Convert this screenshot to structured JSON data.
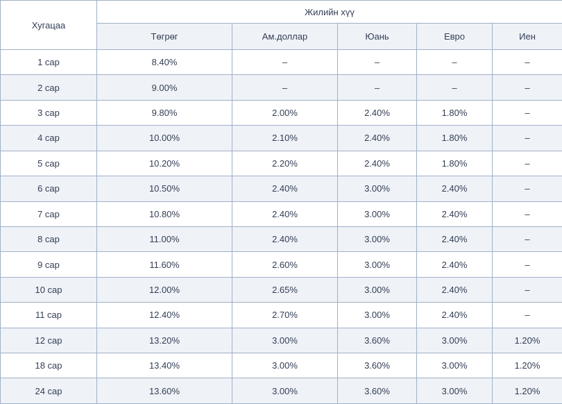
{
  "chart_data": {
    "type": "table",
    "title": "",
    "row_header": "Хугацаа",
    "column_group_header": "Жилийн хүү",
    "columns": [
      "Төгрөг",
      "Ам.доллар",
      "Юань",
      "Евро",
      "Иен"
    ],
    "empty_value": "–",
    "rows": [
      {
        "period": "1 сар",
        "values": [
          "8.40%",
          "–",
          "–",
          "–",
          "–"
        ]
      },
      {
        "period": "2 сар",
        "values": [
          "9.00%",
          "–",
          "–",
          "–",
          "–"
        ]
      },
      {
        "period": "3 сар",
        "values": [
          "9.80%",
          "2.00%",
          "2.40%",
          "1.80%",
          "–"
        ]
      },
      {
        "period": "4 сар",
        "values": [
          "10.00%",
          "2.10%",
          "2.40%",
          "1.80%",
          "–"
        ]
      },
      {
        "period": "5 сар",
        "values": [
          "10.20%",
          "2.20%",
          "2.40%",
          "1.80%",
          "–"
        ]
      },
      {
        "period": "6 сар",
        "values": [
          "10.50%",
          "2.40%",
          "3.00%",
          "2.40%",
          "–"
        ]
      },
      {
        "period": "7 сар",
        "values": [
          "10.80%",
          "2.40%",
          "3.00%",
          "2.40%",
          "–"
        ]
      },
      {
        "period": "8 сар",
        "values": [
          "11.00%",
          "2.40%",
          "3.00%",
          "2.40%",
          "–"
        ]
      },
      {
        "period": "9 сар",
        "values": [
          "11.60%",
          "2.60%",
          "3.00%",
          "2.40%",
          "–"
        ]
      },
      {
        "period": "10 сар",
        "values": [
          "12.00%",
          "2.65%",
          "3.00%",
          "2.40%",
          "–"
        ]
      },
      {
        "period": "11 сар",
        "values": [
          "12.40%",
          "2.70%",
          "3.00%",
          "2.40%",
          "–"
        ]
      },
      {
        "period": "12 сар",
        "values": [
          "13.20%",
          "3.00%",
          "3.60%",
          "3.00%",
          "1.20%"
        ]
      },
      {
        "period": "18 сар",
        "values": [
          "13.40%",
          "3.00%",
          "3.60%",
          "3.00%",
          "1.20%"
        ]
      },
      {
        "period": "24 сар",
        "values": [
          "13.60%",
          "3.00%",
          "3.60%",
          "3.00%",
          "1.20%"
        ]
      }
    ]
  },
  "colors": {
    "border": "#a0b0c6",
    "stripe_background": "#eff2f7",
    "body_text": "#333e55",
    "group_header_text": "#48699a"
  }
}
